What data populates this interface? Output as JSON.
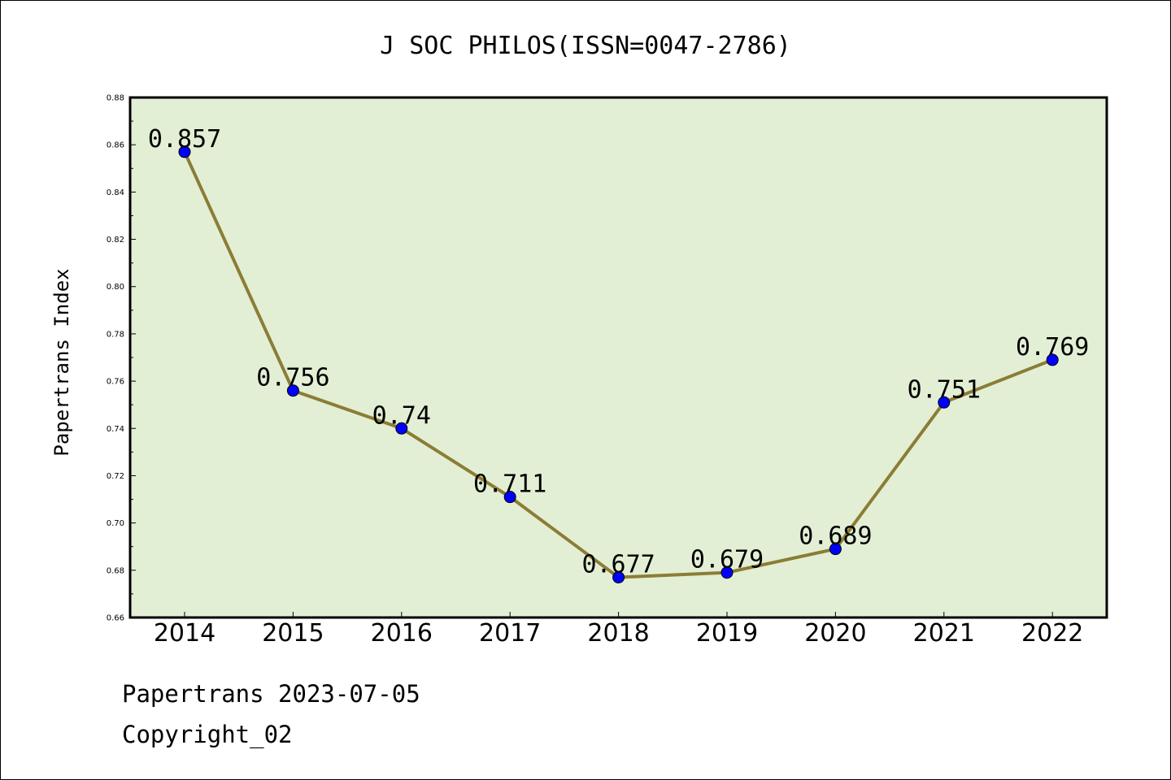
{
  "chart_data": {
    "type": "line",
    "title": "J SOC PHILOS(ISSN=0047-2786)",
    "xlabel": "",
    "ylabel": "Papertrans Index",
    "categories": [
      "2014",
      "2015",
      "2016",
      "2017",
      "2018",
      "2019",
      "2020",
      "2021",
      "2022"
    ],
    "values": [
      0.857,
      0.756,
      0.74,
      0.711,
      0.677,
      0.679,
      0.689,
      0.751,
      0.769
    ],
    "data_labels": [
      "0.857",
      "0.756",
      "0.74",
      "0.711",
      "0.677",
      "0.679",
      "0.689",
      "0.751",
      "0.769"
    ],
    "ylim": [
      0.66,
      0.88
    ],
    "yticks": [
      "0.66",
      "0.68",
      "0.70",
      "0.72",
      "0.74",
      "0.76",
      "0.78",
      "0.80",
      "0.82",
      "0.84",
      "0.86",
      "0.88"
    ],
    "grid": false,
    "legend": "none",
    "colors": {
      "plot_background": "#e2efd5",
      "line": "#8b7d35",
      "marker": "#0000ff"
    }
  },
  "footer": {
    "line1": "Papertrans 2023-07-05",
    "line2": "Copyright_02"
  }
}
